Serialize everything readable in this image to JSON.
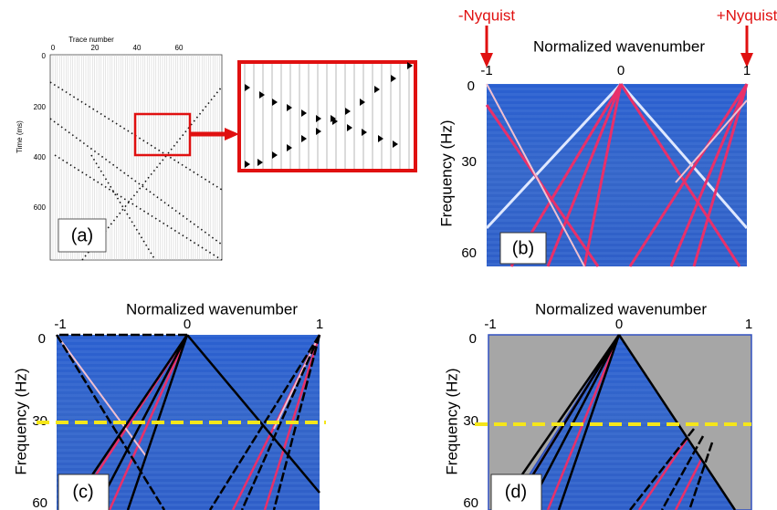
{
  "panel_a": {
    "x_axis_title": "Trace number",
    "x_ticks": [
      "0",
      "20",
      "40",
      "60"
    ],
    "y_axis_title": "Time (ms)",
    "y_ticks": [
      "0",
      "200",
      "400",
      "600"
    ],
    "label": "(a)"
  },
  "panel_b": {
    "left_marker": "-Nyquist",
    "right_marker": "+Nyquist",
    "x_axis_title": "Normalized wavenumber",
    "x_ticks": [
      "-1",
      "0",
      "1"
    ],
    "y_axis_title": "Frequency (Hz)",
    "y_ticks": [
      "0",
      "30",
      "60"
    ],
    "label": "(b)"
  },
  "panel_c": {
    "x_axis_title": "Normalized wavenumber",
    "x_ticks": [
      "-1",
      "0",
      "1"
    ],
    "y_axis_title": "Frequency (Hz)",
    "y_ticks": [
      "0",
      "30",
      "60"
    ],
    "label": "(c)"
  },
  "panel_d": {
    "x_axis_title": "Normalized wavenumber",
    "x_ticks": [
      "-1",
      "0",
      "1"
    ],
    "y_axis_title": "Frequency (Hz)",
    "y_ticks": [
      "0",
      "30",
      "60"
    ],
    "label": "(d)"
  }
}
